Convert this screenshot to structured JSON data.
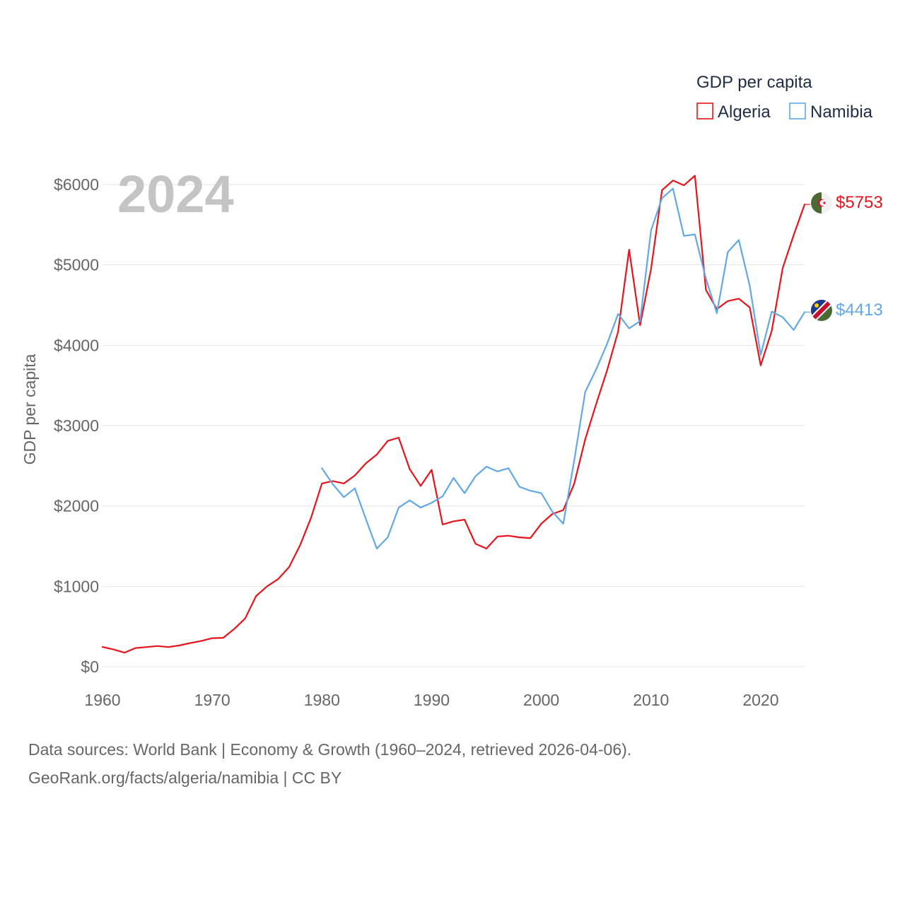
{
  "chart_data": {
    "type": "line",
    "title": "",
    "current_year_label": "2024",
    "ylabel": "GDP per capita",
    "xlabel": "",
    "xlim": [
      1960,
      2024
    ],
    "ylim": [
      0,
      6000
    ],
    "x_ticks": [
      1960,
      1970,
      1980,
      1990,
      2000,
      2010,
      2020
    ],
    "y_ticks": [
      {
        "value": 0,
        "label": "$0"
      },
      {
        "value": 1000,
        "label": "$1000"
      },
      {
        "value": 2000,
        "label": "$2000"
      },
      {
        "value": 3000,
        "label": "$3000"
      },
      {
        "value": 4000,
        "label": "$4000"
      },
      {
        "value": 5000,
        "label": "$5000"
      },
      {
        "value": 6000,
        "label": "$6000"
      }
    ],
    "grid": true,
    "legend": {
      "title": "GDP per capita",
      "position": "top-right"
    },
    "series": [
      {
        "name": "Algeria",
        "color": "#e8141c",
        "end_label": "$5753",
        "flag": "algeria-flag",
        "points": [
          [
            1960,
            246
          ],
          [
            1961,
            215
          ],
          [
            1962,
            175
          ],
          [
            1963,
            232
          ],
          [
            1964,
            245
          ],
          [
            1965,
            258
          ],
          [
            1966,
            245
          ],
          [
            1967,
            265
          ],
          [
            1968,
            295
          ],
          [
            1969,
            320
          ],
          [
            1970,
            355
          ],
          [
            1971,
            360
          ],
          [
            1972,
            470
          ],
          [
            1973,
            600
          ],
          [
            1974,
            880
          ],
          [
            1975,
            1000
          ],
          [
            1976,
            1090
          ],
          [
            1977,
            1240
          ],
          [
            1978,
            1510
          ],
          [
            1979,
            1850
          ],
          [
            1980,
            2280
          ],
          [
            1981,
            2310
          ],
          [
            1982,
            2280
          ],
          [
            1983,
            2380
          ],
          [
            1984,
            2530
          ],
          [
            1985,
            2640
          ],
          [
            1986,
            2810
          ],
          [
            1987,
            2850
          ],
          [
            1988,
            2460
          ],
          [
            1989,
            2250
          ],
          [
            1990,
            2450
          ],
          [
            1991,
            1770
          ],
          [
            1992,
            1810
          ],
          [
            1993,
            1830
          ],
          [
            1994,
            1530
          ],
          [
            1995,
            1470
          ],
          [
            1996,
            1620
          ],
          [
            1997,
            1630
          ],
          [
            1998,
            1610
          ],
          [
            1999,
            1600
          ],
          [
            2000,
            1780
          ],
          [
            2001,
            1900
          ],
          [
            2002,
            1950
          ],
          [
            2003,
            2280
          ],
          [
            2004,
            2830
          ],
          [
            2005,
            3270
          ],
          [
            2006,
            3690
          ],
          [
            2007,
            4170
          ],
          [
            2008,
            5190
          ],
          [
            2009,
            4250
          ],
          [
            2010,
            4950
          ],
          [
            2011,
            5930
          ],
          [
            2012,
            6050
          ],
          [
            2013,
            5990
          ],
          [
            2014,
            6110
          ],
          [
            2015,
            4690
          ],
          [
            2016,
            4450
          ],
          [
            2017,
            4550
          ],
          [
            2018,
            4580
          ],
          [
            2019,
            4470
          ],
          [
            2020,
            3750
          ],
          [
            2021,
            4180
          ],
          [
            2022,
            4960
          ],
          [
            2023,
            5370
          ],
          [
            2024,
            5753
          ]
        ]
      },
      {
        "name": "Namibia",
        "color": "#62a8e5",
        "end_label": "$4413",
        "flag": "namibia-flag",
        "points": [
          [
            1980,
            2470
          ],
          [
            1981,
            2270
          ],
          [
            1982,
            2110
          ],
          [
            1983,
            2220
          ],
          [
            1984,
            1840
          ],
          [
            1985,
            1470
          ],
          [
            1986,
            1610
          ],
          [
            1987,
            1980
          ],
          [
            1988,
            2070
          ],
          [
            1989,
            1980
          ],
          [
            1990,
            2040
          ],
          [
            1991,
            2120
          ],
          [
            1992,
            2350
          ],
          [
            1993,
            2160
          ],
          [
            1994,
            2370
          ],
          [
            1995,
            2490
          ],
          [
            1996,
            2430
          ],
          [
            1997,
            2470
          ],
          [
            1998,
            2240
          ],
          [
            1999,
            2190
          ],
          [
            2000,
            2160
          ],
          [
            2001,
            1930
          ],
          [
            2002,
            1780
          ],
          [
            2003,
            2570
          ],
          [
            2004,
            3420
          ],
          [
            2005,
            3700
          ],
          [
            2006,
            4020
          ],
          [
            2007,
            4390
          ],
          [
            2008,
            4210
          ],
          [
            2009,
            4300
          ],
          [
            2010,
            5430
          ],
          [
            2011,
            5830
          ],
          [
            2012,
            5950
          ],
          [
            2013,
            5360
          ],
          [
            2014,
            5380
          ],
          [
            2015,
            4830
          ],
          [
            2016,
            4400
          ],
          [
            2017,
            5160
          ],
          [
            2018,
            5310
          ],
          [
            2019,
            4740
          ],
          [
            2020,
            3880
          ],
          [
            2021,
            4420
          ],
          [
            2022,
            4350
          ],
          [
            2023,
            4190
          ],
          [
            2024,
            4413
          ]
        ]
      }
    ]
  },
  "footer": {
    "line1": "Data sources: World Bank | Economy & Growth (1960–2024, retrieved 2026-04-06).",
    "line2": "GeoRank.org/facts/algeria/namibia | CC BY"
  }
}
